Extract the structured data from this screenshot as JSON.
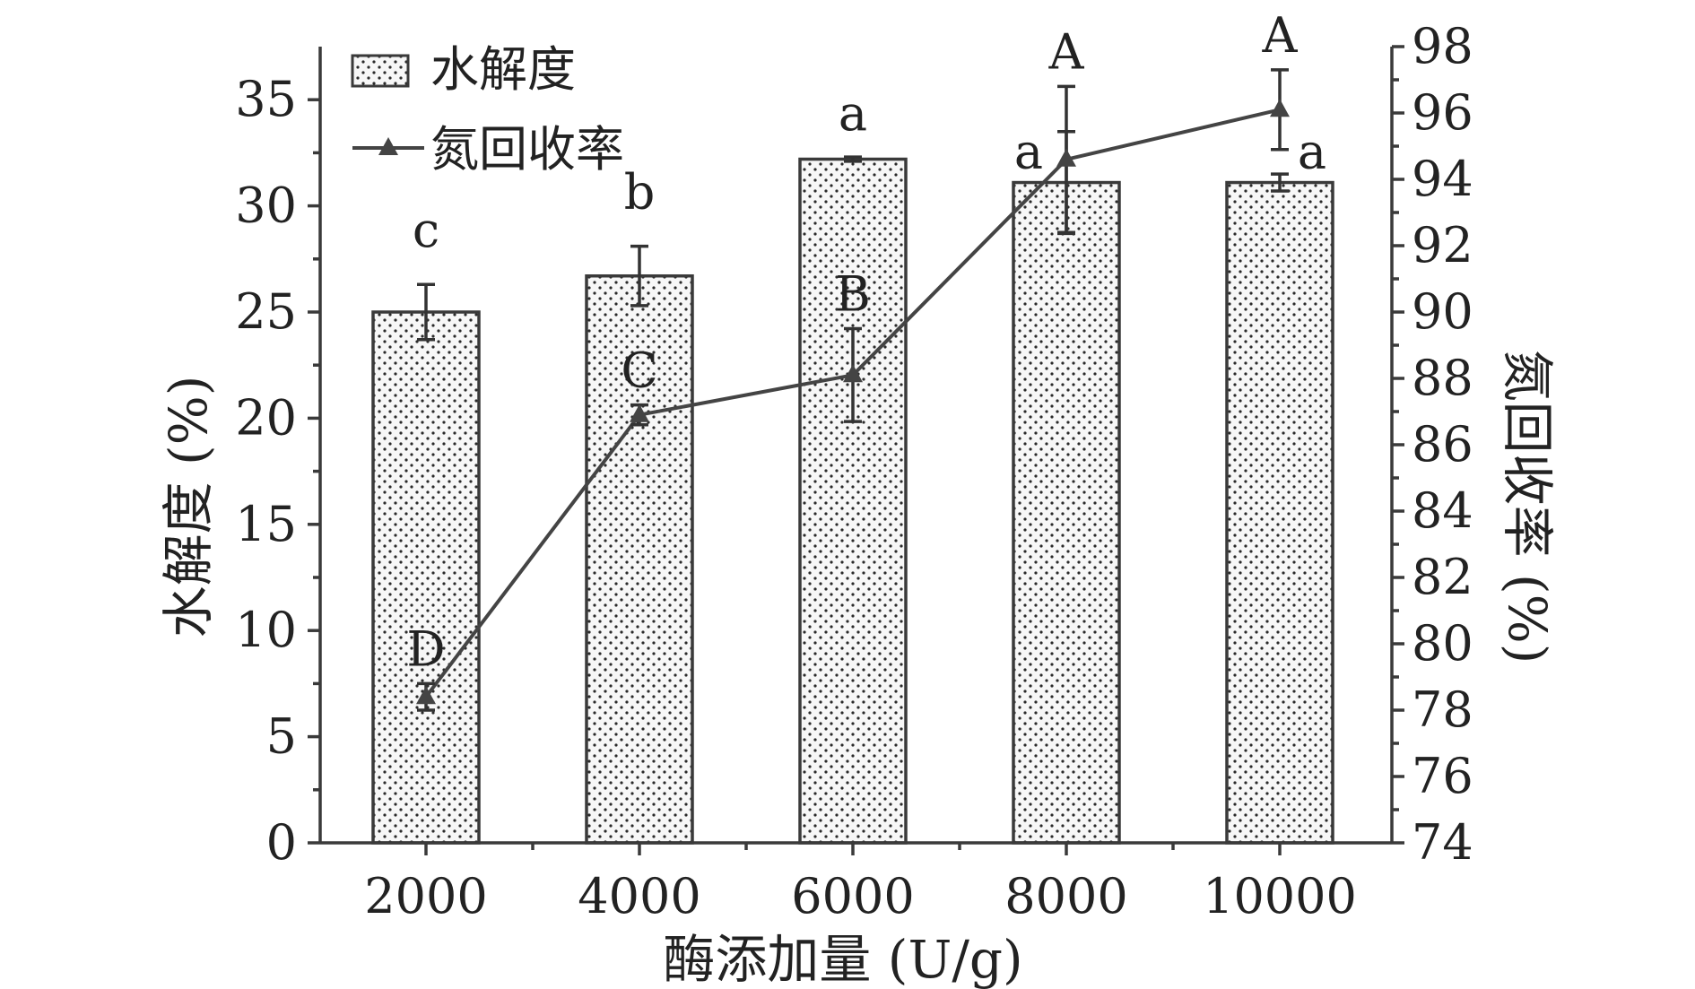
{
  "chart_data": {
    "type": "bar",
    "categories": [
      "2000",
      "4000",
      "6000",
      "8000",
      "10000"
    ],
    "xlabel": "酶添加量 (U/g)",
    "ylabel_left": "水解度 (%)",
    "ylabel_right": "氮回收率 (%)",
    "ylim_left": [
      0,
      37.5
    ],
    "ylim_right": [
      74,
      98
    ],
    "yticks_left": [
      "0",
      "5",
      "10",
      "15",
      "20",
      "25",
      "30",
      "35"
    ],
    "yticks_right": [
      "74",
      "76",
      "78",
      "80",
      "82",
      "84",
      "86",
      "88",
      "90",
      "92",
      "94",
      "96",
      "98"
    ],
    "series": [
      {
        "name": "水解度",
        "kind": "bar",
        "axis": "left",
        "values": [
          25.0,
          26.7,
          32.2,
          31.1,
          31.1
        ],
        "errors": [
          1.3,
          1.4,
          0.1,
          2.4,
          0.4
        ],
        "letters": [
          "c",
          "b",
          "a",
          "a",
          "a"
        ]
      },
      {
        "name": "氮回收率",
        "kind": "line",
        "axis": "right",
        "values": [
          78.4,
          86.9,
          88.1,
          94.6,
          96.1
        ],
        "errors": [
          0.4,
          0.3,
          1.4,
          2.2,
          1.2
        ],
        "letters": [
          "D",
          "C",
          "B",
          "A",
          "A"
        ]
      }
    ],
    "legend": {
      "placement": "top-left",
      "entries": [
        "水解度",
        "氮回收率"
      ]
    },
    "grid": false,
    "colors": {
      "axis": "#3a3a3a",
      "bar_fill": "#f7f7f7",
      "bar_dot": "#2a2a2a",
      "line": "#444444"
    }
  }
}
